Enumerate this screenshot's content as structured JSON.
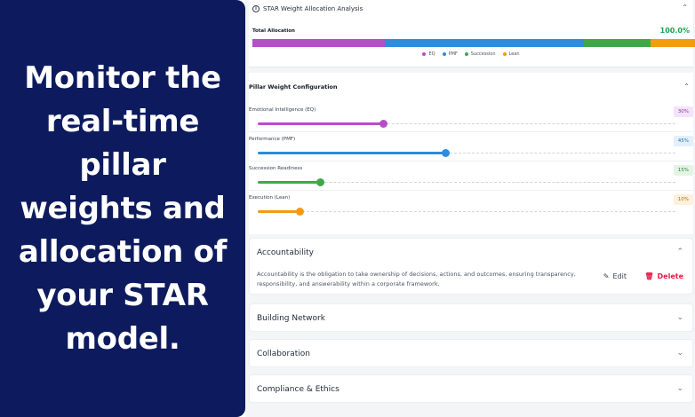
{
  "promo": {
    "text": "Monitor the real-time pillar weights and allocation of your STAR model."
  },
  "analysis": {
    "title": "STAR Weight Allocation Analysis",
    "total_label": "Total Allocation",
    "total_value": "100.0%",
    "segments": [
      {
        "name": "EQ",
        "value": 30,
        "color": "#b44fc8"
      },
      {
        "name": "PMF",
        "value": 45,
        "color": "#2a8de0"
      },
      {
        "name": "Succession",
        "value": 15,
        "color": "#3ea849"
      },
      {
        "name": "Lean",
        "value": 10,
        "color": "#f59a12"
      }
    ]
  },
  "pillar_config": {
    "title": "Pillar Weight Configuration",
    "pillars": [
      {
        "label": "Emotional Intelligence (EQ)",
        "percent": 30,
        "badge": "30%",
        "color": "#b44fc8",
        "badge_bg": "#f3e3f8",
        "badge_fg": "#8e2fa3"
      },
      {
        "label": "Performance (PMF)",
        "percent": 45,
        "badge": "45%",
        "color": "#2a8de0",
        "badge_bg": "#e2f0fc",
        "badge_fg": "#1c6fb8"
      },
      {
        "label": "Succession Readiness",
        "percent": 15,
        "badge": "15%",
        "color": "#3ea849",
        "badge_bg": "#e3f4e5",
        "badge_fg": "#2b7e34"
      },
      {
        "label": "Execution (Lean)",
        "percent": 10,
        "badge": "10%",
        "color": "#f59a12",
        "badge_bg": "#fdf0dc",
        "badge_fg": "#b86e05"
      }
    ]
  },
  "accordions": {
    "accountability": {
      "title": "Accountability",
      "description": "Accountability is the obligation to take ownership of decisions, actions, and outcomes, ensuring transparency, responsibility, and answerability within a corporate framework.",
      "edit_label": "Edit",
      "delete_label": "Delete"
    },
    "building_network": {
      "title": "Building Network"
    },
    "collaboration": {
      "title": "Collaboration"
    },
    "compliance": {
      "title": "Compliance & Ethics"
    }
  },
  "icons": {
    "info": "info-icon",
    "chevron_up": "chevron-up-icon",
    "chevron_down": "chevron-down-icon",
    "edit": "pencil-icon",
    "delete": "trash-icon"
  }
}
